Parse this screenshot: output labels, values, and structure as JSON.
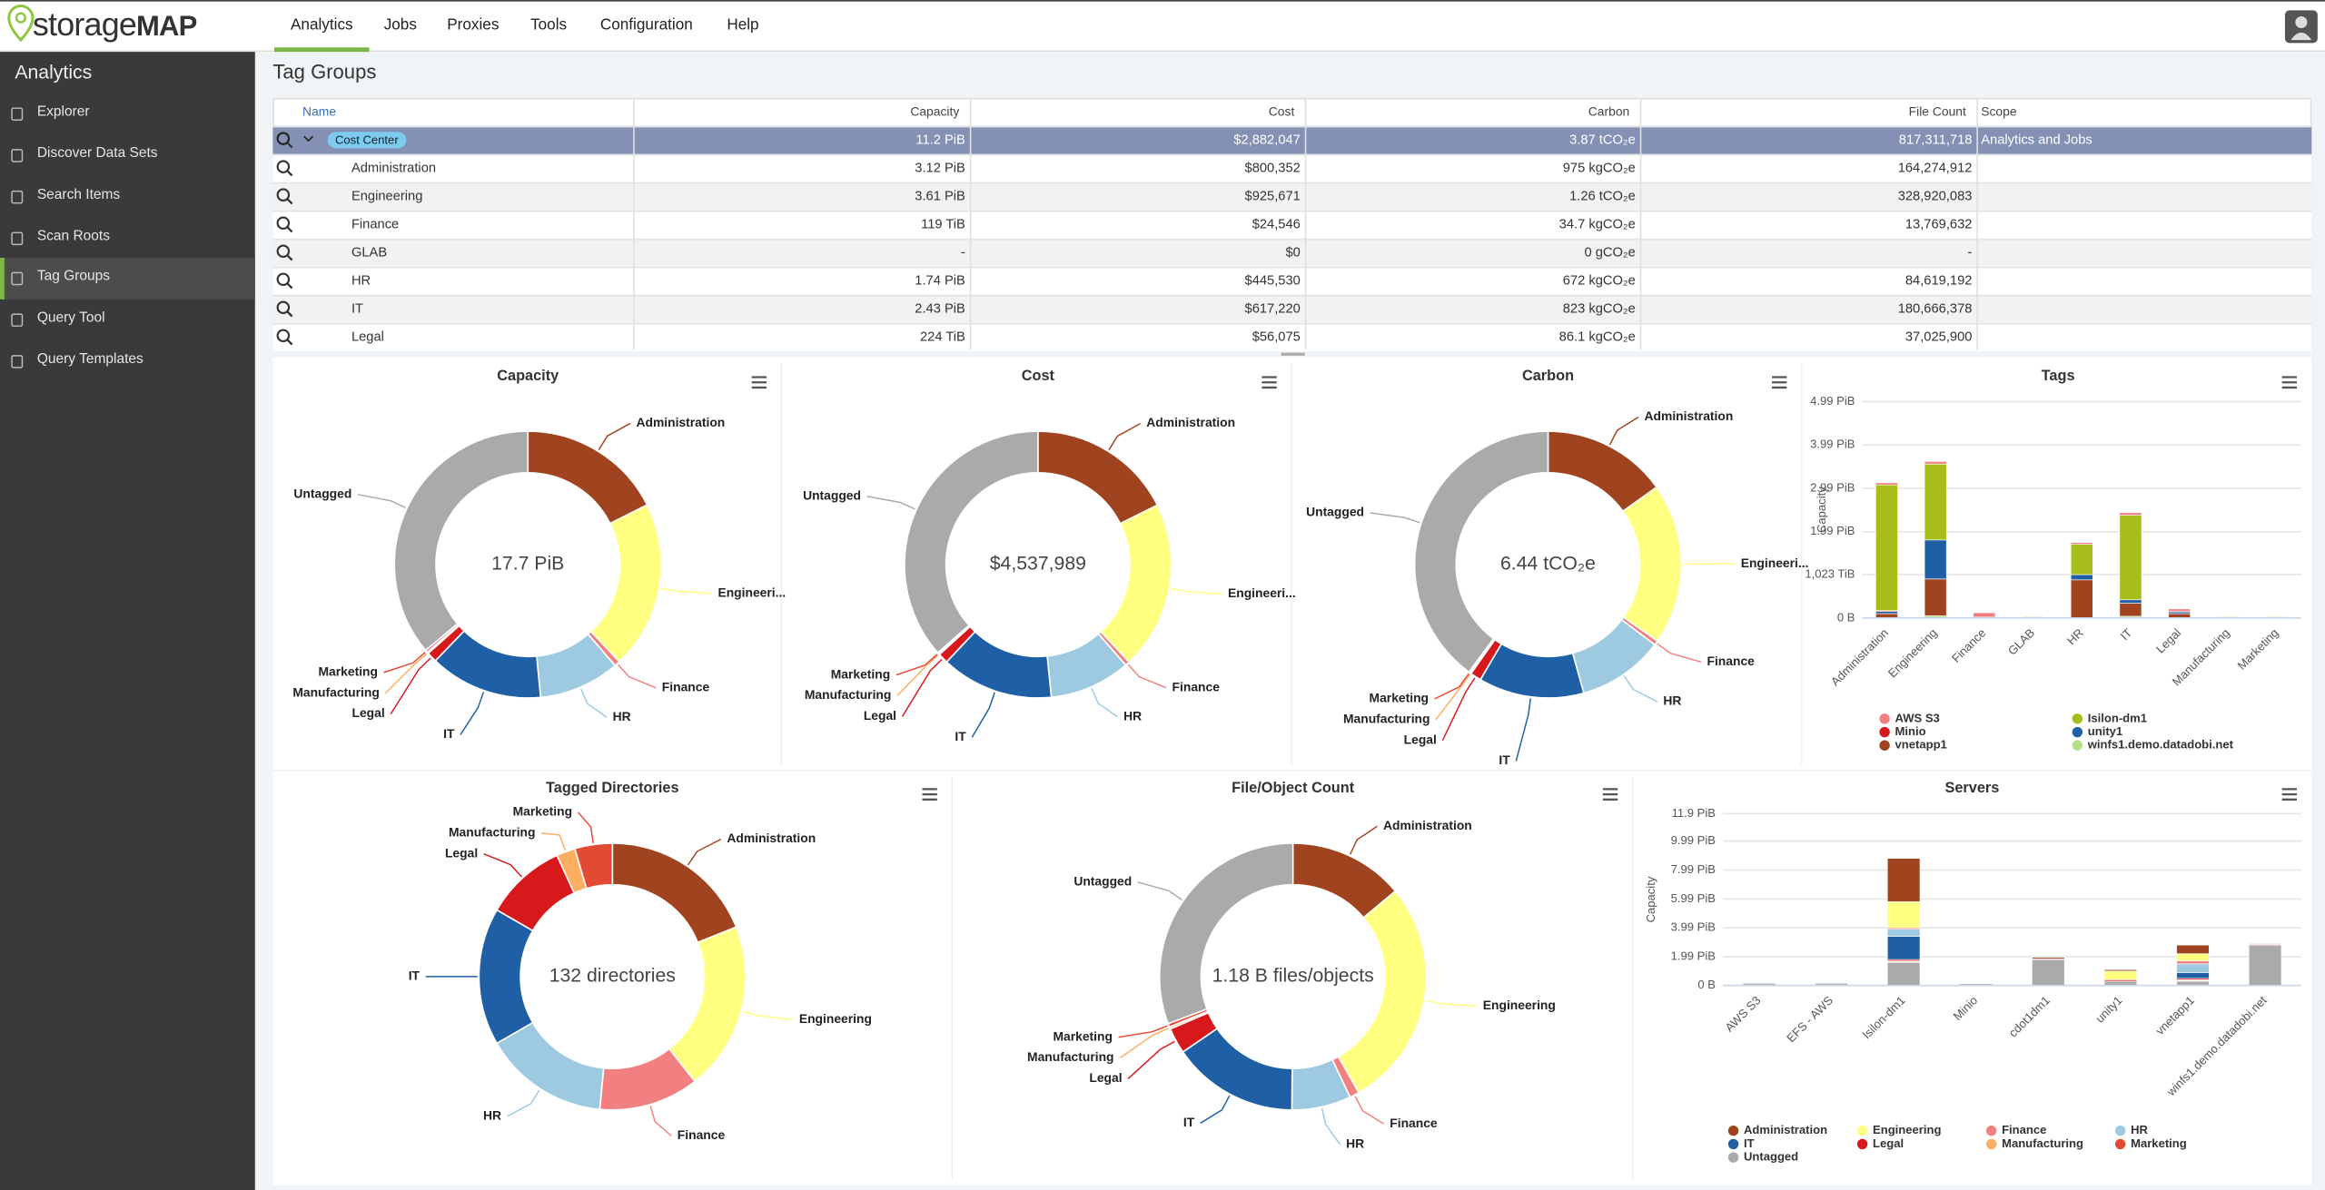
{
  "nav": {
    "logo_light": "storage",
    "logo_bold": "MAP",
    "items": [
      "Analytics",
      "Jobs",
      "Proxies",
      "Tools",
      "Configuration",
      "Help"
    ]
  },
  "sidebar": {
    "title": "Analytics",
    "items": [
      "Explorer",
      "Discover Data Sets",
      "Search Items",
      "Scan Roots",
      "Tag Groups",
      "Query Tool",
      "Query Templates"
    ]
  },
  "page_title": "Tag Groups",
  "table": {
    "columns": [
      "Name",
      "Capacity",
      "Cost",
      "Carbon",
      "File Count",
      "Scope"
    ],
    "rows": [
      [
        "Cost Center",
        "11.2 PiB",
        "$2,882,047",
        "3.87 tCO₂e",
        "817,311,718",
        "Analytics and Jobs"
      ],
      [
        "Administration",
        "3.12 PiB",
        "$800,352",
        "975 kgCO₂e",
        "164,274,912"
      ],
      [
        "Engineering",
        "3.61 PiB",
        "$925,671",
        "1.26 tCO₂e",
        "328,920,083"
      ],
      [
        "Finance",
        "119 TiB",
        "$24,546",
        "34.7 kgCO₂e",
        "13,769,632"
      ],
      [
        "GLAB",
        "-",
        "$0",
        "0 gCO₂e",
        "-"
      ],
      [
        "HR",
        "1.74 PiB",
        "$445,530",
        "672 kgCO₂e",
        "84,619,192"
      ],
      [
        "IT",
        "2.43 PiB",
        "$617,220",
        "823 kgCO₂e",
        "180,666,378"
      ],
      [
        "Legal",
        "224 TiB",
        "$56,075",
        "86.1 kgCO₂e",
        "37,025,900"
      ]
    ]
  },
  "chart_data": [
    {
      "type": "donut",
      "title": "Capacity",
      "center_label": "17.7 PiB",
      "categories": [
        "Administration",
        "Engineeri...",
        "Finance",
        "HR",
        "IT",
        "Legal",
        "Manufacturing",
        "Marketing",
        "Untagged"
      ],
      "values": [
        3.12,
        3.61,
        0.12,
        1.74,
        2.43,
        0.22,
        0.03,
        0.05,
        6.4
      ],
      "colors": [
        "#a0441f",
        "#ffff80",
        "#f28080",
        "#9ecae1",
        "#1f5fa6",
        "#d7191c",
        "#fdae61",
        "#e34a33",
        "#aaaaaa"
      ]
    },
    {
      "type": "donut",
      "title": "Cost",
      "center_label": "$4,537,989",
      "categories": [
        "Administration",
        "Engineeri...",
        "Finance",
        "HR",
        "IT",
        "Legal",
        "Manufacturing",
        "Marketing",
        "Untagged"
      ],
      "values": [
        800352,
        925671,
        24546,
        445530,
        617220,
        56075,
        4653,
        8000,
        1655942
      ],
      "colors": [
        "#a0441f",
        "#ffff80",
        "#f28080",
        "#9ecae1",
        "#1f5fa6",
        "#d7191c",
        "#fdae61",
        "#e34a33",
        "#aaaaaa"
      ]
    },
    {
      "type": "donut",
      "title": "Carbon",
      "center_label": "6.44 tCO₂e",
      "categories": [
        "Administration",
        "Engineeri...",
        "Finance",
        "HR",
        "IT",
        "Legal",
        "Manufacturing",
        "Marketing",
        "Untagged"
      ],
      "values": [
        0.975,
        1.26,
        0.0347,
        0.672,
        0.823,
        0.0861,
        0.007,
        0.012,
        2.57
      ],
      "colors": [
        "#a0441f",
        "#ffff80",
        "#f28080",
        "#9ecae1",
        "#1f5fa6",
        "#d7191c",
        "#fdae61",
        "#e34a33",
        "#aaaaaa"
      ]
    },
    {
      "type": "bar",
      "stacked": true,
      "title": "Tags",
      "y_label": "Capacity",
      "categories": [
        "Administration",
        "Engineering",
        "Finance",
        "GLAB",
        "HR",
        "IT",
        "Legal",
        "Manufacturing",
        "Marketing"
      ],
      "series": [
        {
          "name": "AWS S3",
          "color": "#f08080",
          "values": [
            0.05,
            0.06,
            0.1,
            0,
            0.04,
            0.06,
            0.05,
            0,
            0
          ]
        },
        {
          "name": "Isilon-dm1",
          "color": "#a6bd1a",
          "values": [
            2.9,
            1.75,
            0,
            0,
            0.7,
            1.95,
            0,
            0,
            0
          ]
        },
        {
          "name": "Minio",
          "color": "#d7191c",
          "values": [
            0.02,
            0,
            0,
            0,
            0,
            0,
            0.02,
            0,
            0
          ]
        },
        {
          "name": "unity1",
          "color": "#1f5fa6",
          "values": [
            0.05,
            0.9,
            0,
            0,
            0.12,
            0.08,
            0.04,
            0,
            0
          ]
        },
        {
          "name": "vnetapp1",
          "color": "#a0441f",
          "values": [
            0.1,
            0.85,
            0.02,
            0,
            0.88,
            0.3,
            0.1,
            0,
            0
          ]
        },
        {
          "name": "winfs1.demo.datadobi.net",
          "color": "#b5e08a",
          "values": [
            0,
            0.05,
            0,
            0.03,
            0,
            0.04,
            0,
            0.03,
            0.03
          ]
        }
      ],
      "ylim": [
        0,
        4.99
      ],
      "yticks": [
        {
          "value": 0,
          "label": "0 B"
        },
        {
          "value": 0.999,
          "label": "1,023 TiB"
        },
        {
          "value": 1.99,
          "label": "1.99 PiB"
        },
        {
          "value": 2.99,
          "label": "2.99 PiB"
        },
        {
          "value": 3.99,
          "label": "3.99 PiB"
        },
        {
          "value": 4.99,
          "label": "4.99 PiB"
        }
      ],
      "grid": true
    },
    {
      "type": "donut",
      "title": "Tagged Directories",
      "center_label": "132 directories",
      "categories": [
        "Administration",
        "Engineering",
        "Finance",
        "HR",
        "IT",
        "Legal",
        "Manufacturing",
        "Marketing"
      ],
      "values": [
        25,
        27,
        16,
        20,
        22,
        13,
        3,
        6
      ],
      "colors": [
        "#a0441f",
        "#ffff80",
        "#f28080",
        "#9ecae1",
        "#1f5fa6",
        "#d7191c",
        "#fdae61",
        "#e34a33"
      ]
    },
    {
      "type": "donut",
      "title": "File/Object Count",
      "center_label": "1.18 B files/objects",
      "categories": [
        "Administration",
        "Engineering",
        "Finance",
        "HR",
        "IT",
        "Legal",
        "Manufacturing",
        "Marketing",
        "Untagged"
      ],
      "values": [
        164274912,
        328920083,
        13769632,
        84619192,
        180666378,
        37025900,
        3035621,
        5000000,
        362700000
      ],
      "colors": [
        "#a0441f",
        "#ffff80",
        "#f28080",
        "#9ecae1",
        "#1f5fa6",
        "#d7191c",
        "#fdae61",
        "#e34a33",
        "#aaaaaa"
      ]
    },
    {
      "type": "bar",
      "stacked": true,
      "title": "Servers",
      "y_label": "Capacity",
      "categories": [
        "AWS S3",
        "EFS - AWS",
        "Isilon-dm1",
        "Minio",
        "cdot1dm1",
        "unity1",
        "vnetapp1",
        "winfs1.demo.datadobi.net"
      ],
      "series": [
        {
          "name": "Administration",
          "color": "#a0441f",
          "values": [
            0,
            0,
            3.0,
            0,
            0.1,
            0.1,
            0.6,
            0.05
          ]
        },
        {
          "name": "Engineering",
          "color": "#ffff80",
          "values": [
            0,
            0,
            1.8,
            0,
            0,
            0.6,
            0.5,
            0
          ]
        },
        {
          "name": "Finance",
          "color": "#f28080",
          "values": [
            0,
            0,
            0.1,
            0,
            0,
            0,
            0.2,
            0
          ]
        },
        {
          "name": "HR",
          "color": "#9ecae1",
          "values": [
            0,
            0,
            0.5,
            0,
            0,
            0,
            0.6,
            0
          ]
        },
        {
          "name": "IT",
          "color": "#1f5fa6",
          "values": [
            0,
            0,
            1.6,
            0,
            0,
            0,
            0.4,
            0
          ]
        },
        {
          "name": "Legal",
          "color": "#d7191c",
          "values": [
            0,
            0,
            0.1,
            0,
            0.05,
            0.1,
            0.1,
            0.05
          ]
        },
        {
          "name": "Manufacturing",
          "color": "#fdae61",
          "values": [
            0,
            0,
            0.05,
            0,
            0,
            0,
            0.05,
            0
          ]
        },
        {
          "name": "Marketing",
          "color": "#e34a33",
          "values": [
            0,
            0,
            0.05,
            0,
            0,
            0,
            0.05,
            0
          ]
        },
        {
          "name": "Untagged",
          "color": "#aaaaaa",
          "values": [
            0.15,
            0.15,
            1.6,
            0.12,
            1.8,
            0.3,
            0.3,
            2.8
          ]
        }
      ],
      "ylim": [
        0,
        11.9
      ],
      "yticks": [
        {
          "value": 0,
          "label": "0 B"
        },
        {
          "value": 1.99,
          "label": "1.99 PiB"
        },
        {
          "value": 3.99,
          "label": "3.99 PiB"
        },
        {
          "value": 5.99,
          "label": "5.99 PiB"
        },
        {
          "value": 7.99,
          "label": "7.99 PiB"
        },
        {
          "value": 9.99,
          "label": "9.99 PiB"
        },
        {
          "value": 11.9,
          "label": "11.9 PiB"
        }
      ],
      "grid": true
    }
  ]
}
